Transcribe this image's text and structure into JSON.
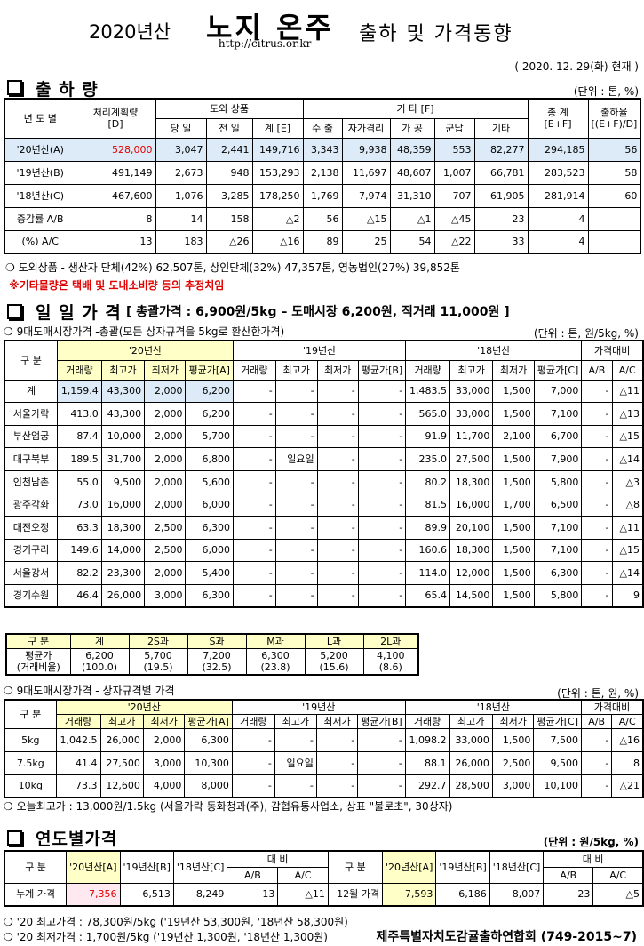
{
  "header": {
    "year": "2020년산",
    "title": "노지 온주",
    "subtitle": "출하 및 가격동향",
    "url": "- http://citrus.or.kr -",
    "date": "( 2020. 12. 29(화) 현재 )"
  },
  "shipment": {
    "heading": "출 하 량",
    "unit": "(단위 : 톤, %)",
    "table": {
      "head": [
        [
          "년 도 별",
          [
            "처리계획량",
            "[D]"
          ],
          "도외 상품",
          "기 타 [F]",
          [
            "총 계",
            "[E+F]"
          ],
          [
            "출하율",
            "[(E+F)/D]"
          ]
        ],
        [
          "당 일",
          "전 일",
          "계 [E]",
          "수 출",
          "자가격리",
          "가 공",
          "군납",
          "기타"
        ]
      ],
      "rows": [
        [
          "'20년산(A)",
          "528,000",
          "3,047",
          "2,441",
          "149,716",
          "3,343",
          "9,938",
          "48,359",
          "553",
          "82,277",
          "294,185",
          "56"
        ],
        [
          "'19년산(B)",
          "491,149",
          "2,673",
          "948",
          "153,293",
          "2,138",
          "11,697",
          "48,607",
          "1,007",
          "66,781",
          "283,523",
          "58"
        ],
        [
          "'18년산(C)",
          "467,600",
          "1,076",
          "3,285",
          "178,250",
          "1,769",
          "7,974",
          "31,310",
          "707",
          "61,905",
          "281,914",
          "60"
        ],
        [
          "증감률  A/B",
          "8",
          "14",
          "158",
          "△2",
          "56",
          "△15",
          "△1",
          "△45",
          "23",
          "4"
        ],
        [
          "(%)  A/C",
          "13",
          "183",
          "△26",
          "△16",
          "89",
          "25",
          "54",
          "△22",
          "33",
          "4"
        ]
      ]
    },
    "note": "❍ 도외상품 - 생산자 단체(42%) 62,507톤,  상인단체(32%) 47,357톤,  영농법인(27%) 39,852톤",
    "remark": "※기타물량은 택배 및 도내소비량 등의 추정치임"
  },
  "daily": {
    "heading": "일 일 가 격",
    "summary": "[ 총괄가격 : 6,900원/5kg – 도매시장 6,200원, 직거래 11,000원 ]",
    "subheading": "❍ 9대도매시장가격 -총괄(모든 상자규격을 5kg로 환산한가격)",
    "unit": "(단위 : 톤, 원/5kg, %)",
    "table": {
      "head": [
        [
          "구 분",
          "'20년산",
          "'19년산",
          "'18년산",
          "가격대비"
        ],
        [
          "거래량",
          "최고가",
          "최저가",
          "평균가[A]",
          "거래량",
          "최고가",
          "최저가",
          "평균가[B]",
          "거래량",
          "최고가",
          "최저가",
          "평균가[C]",
          "A/B",
          "A/C"
        ]
      ],
      "rows": [
        [
          "계",
          "1,159.4",
          "43,300",
          "2,000",
          "6,200",
          "-",
          "-",
          "-",
          "-",
          "1,483.5",
          "33,000",
          "1,500",
          "7,000",
          "-",
          "△11"
        ],
        [
          "서울가락",
          "413.0",
          "43,300",
          "2,000",
          "6,200",
          "-",
          "-",
          "-",
          "-",
          "565.0",
          "33,000",
          "1,500",
          "7,100",
          "-",
          "△13"
        ],
        [
          "부산엄궁",
          "87.4",
          "10,000",
          "2,000",
          "5,700",
          "-",
          "-",
          "-",
          "-",
          "91.9",
          "11,700",
          "2,100",
          "6,700",
          "-",
          "△15"
        ],
        [
          "대구북부",
          "189.5",
          "31,700",
          "2,000",
          "6,800",
          "-",
          "일요일",
          "-",
          "-",
          "235.0",
          "27,500",
          "1,500",
          "7,900",
          "-",
          "△14"
        ],
        [
          "인천남촌",
          "55.0",
          "9,500",
          "2,000",
          "5,600",
          "-",
          "-",
          "-",
          "-",
          "80.2",
          "18,300",
          "1,500",
          "5,800",
          "-",
          "△3"
        ],
        [
          "광주각화",
          "73.0",
          "16,000",
          "2,000",
          "6,000",
          "-",
          "-",
          "-",
          "-",
          "81.5",
          "16,000",
          "1,700",
          "6,500",
          "-",
          "△8"
        ],
        [
          "대전오정",
          "63.3",
          "18,300",
          "2,500",
          "6,300",
          "-",
          "-",
          "-",
          "-",
          "89.9",
          "20,100",
          "1,500",
          "7,100",
          "-",
          "△11"
        ],
        [
          "경기구리",
          "149.6",
          "14,000",
          "2,500",
          "6,000",
          "-",
          "-",
          "-",
          "-",
          "160.6",
          "18,300",
          "1,500",
          "7,100",
          "-",
          "△15"
        ],
        [
          "서울강서",
          "82.2",
          "23,300",
          "2,000",
          "5,400",
          "-",
          "-",
          "-",
          "-",
          "114.0",
          "12,000",
          "1,500",
          "6,300",
          "-",
          "△14"
        ],
        [
          "경기수원",
          "46.4",
          "26,000",
          "3,000",
          "6,300",
          "-",
          "-",
          "-",
          "-",
          "65.4",
          "14,500",
          "1,500",
          "5,800",
          "-",
          "9"
        ]
      ]
    },
    "size_table": {
      "head": [
        [
          "구  분",
          "계",
          "2S과",
          "S과",
          "M과",
          "L과",
          "2L과"
        ]
      ],
      "rows": [
        [
          [
            "평균가",
            "(거래비율)"
          ],
          [
            "6,200",
            "(100.0)"
          ],
          [
            "5,700",
            "(19.5)"
          ],
          [
            "7,200",
            "(32.5)"
          ],
          [
            "6,300",
            "(23.8)"
          ],
          [
            "5,200",
            "(15.6)"
          ],
          [
            "4,100",
            "(8.6)"
          ]
        ]
      ]
    }
  },
  "box": {
    "subheading": "❍ 9대도매시장가격 - 상자규격별 가격",
    "unit": "(단위 : 톤, 원, %)",
    "table": {
      "head": [
        [
          "구 분",
          "'20년산",
          "'19년산",
          "'18년산",
          "가격대비"
        ],
        [
          "거래량",
          "최고가",
          "최저가",
          "평균가[A]",
          "거래량",
          "최고가",
          "최저가",
          "평균가[B]",
          "거래량",
          "최고가",
          "최저가",
          "평균가[C]",
          "A/B",
          "A/C"
        ]
      ],
      "rows": [
        [
          "5kg",
          "1,042.5",
          "26,000",
          "2,000",
          "6,300",
          "-",
          "-",
          "-",
          "-",
          "1,098.2",
          "33,000",
          "1,500",
          "7,500",
          "-",
          "△16"
        ],
        [
          "7.5kg",
          "41.4",
          "27,500",
          "3,000",
          "10,300",
          "-",
          "일요일",
          "-",
          "-",
          "88.1",
          "26,000",
          "2,500",
          "9,500",
          "-",
          "8"
        ],
        [
          "10kg",
          "73.3",
          "12,600",
          "4,000",
          "8,000",
          "-",
          "-",
          "-",
          "-",
          "292.7",
          "28,500",
          "3,000",
          "10,100",
          "-",
          "△21"
        ]
      ]
    },
    "note": "❍ 오늘최고가 :  13,000원/1.5kg (서울가락  동화청과(주),  감협유통사업소,  상표 \"불로초\",  30상자)"
  },
  "yearly": {
    "heading": "연도별가격",
    "unit": "(단위 : 원/5kg, %)",
    "table": {
      "head": [
        [
          "구  분",
          "'20년산[A]",
          "'19년산[B]",
          "'18년산[C]",
          "대  비",
          "구  분",
          "'20년산[A]",
          "'19년산[B]",
          "'18년산[C]",
          "대  비"
        ],
        [
          "A/B",
          "A/C",
          "A/B",
          "A/C"
        ]
      ],
      "rows": [
        [
          "누계 가격",
          "7,356",
          "6,513",
          "8,249",
          "13",
          "△11",
          "12월 가격",
          "7,593",
          "6,186",
          "8,007",
          "23",
          "△5"
        ]
      ]
    },
    "notes": [
      "❍ '20 최고가격 : 78,300원/5kg ('19년산 53,300원, '18년산 58,300원)",
      "❍ '20 최저가격 :  1,700원/5kg ('19년산 1,300원, '18년산  1,300원)"
    ],
    "footer": "제주특별자치도감귤출하연합회 (749-2015~7)"
  }
}
